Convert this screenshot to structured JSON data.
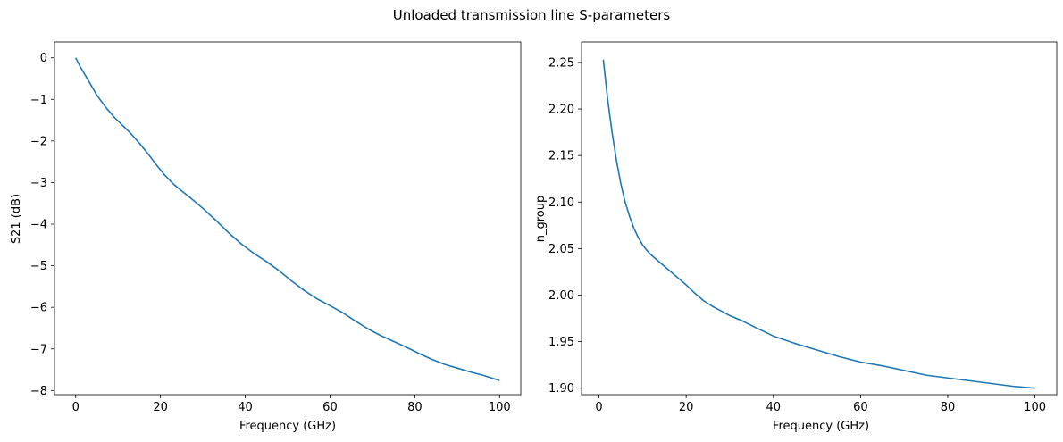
{
  "figure": {
    "title": "Unloaded transmission line S-parameters"
  },
  "chart_data": [
    {
      "type": "line",
      "xlabel": "Frequency (GHz)",
      "ylabel": "S21 (dB)",
      "xlim": [
        -5,
        105
      ],
      "ylim": [
        -8.1,
        0.38
      ],
      "xticks": [
        0,
        20,
        40,
        60,
        80,
        100
      ],
      "xtick_labels": [
        "0",
        "20",
        "40",
        "60",
        "80",
        "100"
      ],
      "yticks": [
        0,
        -1,
        -2,
        -3,
        -4,
        -5,
        -6,
        -7,
        -8
      ],
      "ytick_labels": [
        "0",
        "−1",
        "−2",
        "−3",
        "−4",
        "−5",
        "−6",
        "−7",
        "−8"
      ],
      "grid": false,
      "series": [
        {
          "color": "#1f77b4",
          "x": [
            0,
            1,
            3,
            5,
            7,
            9,
            11,
            13,
            15,
            17,
            19,
            21,
            23,
            25,
            27,
            30,
            33,
            36,
            39,
            42,
            45,
            48,
            51,
            54,
            57,
            60,
            63,
            66,
            69,
            72,
            75,
            78,
            81,
            84,
            87,
            90,
            93,
            96,
            100
          ],
          "y": [
            0,
            -0.2,
            -0.55,
            -0.9,
            -1.18,
            -1.42,
            -1.62,
            -1.82,
            -2.05,
            -2.3,
            -2.57,
            -2.82,
            -3.03,
            -3.2,
            -3.36,
            -3.62,
            -3.9,
            -4.2,
            -4.47,
            -4.7,
            -4.9,
            -5.12,
            -5.37,
            -5.6,
            -5.8,
            -5.96,
            -6.13,
            -6.33,
            -6.52,
            -6.68,
            -6.82,
            -6.96,
            -7.11,
            -7.25,
            -7.37,
            -7.46,
            -7.55,
            -7.63,
            -7.76
          ]
        }
      ]
    },
    {
      "type": "line",
      "xlabel": "Frequency (GHz)",
      "ylabel": "n_group",
      "xlim": [
        -4,
        105
      ],
      "ylim": [
        1.893,
        2.272
      ],
      "xticks": [
        0,
        20,
        40,
        60,
        80,
        100
      ],
      "xtick_labels": [
        "0",
        "20",
        "40",
        "60",
        "80",
        "100"
      ],
      "yticks": [
        1.9,
        1.95,
        2.0,
        2.05,
        2.1,
        2.15,
        2.2,
        2.25
      ],
      "ytick_labels": [
        "1.90",
        "1.95",
        "2.00",
        "2.05",
        "2.10",
        "2.15",
        "2.20",
        "2.25"
      ],
      "grid": false,
      "series": [
        {
          "color": "#1f77b4",
          "x": [
            1,
            2,
            3,
            4,
            5,
            6,
            7,
            8,
            9,
            10,
            11,
            12,
            14,
            16,
            18,
            20,
            22,
            24,
            26,
            28,
            30,
            33,
            36,
            40,
            45,
            50,
            55,
            60,
            65,
            70,
            75,
            80,
            85,
            90,
            95,
            100
          ],
          "y": [
            2.253,
            2.21,
            2.175,
            2.145,
            2.12,
            2.1,
            2.085,
            2.072,
            2.062,
            2.054,
            2.048,
            2.043,
            2.035,
            2.027,
            2.019,
            2.011,
            2.002,
            1.994,
            1.988,
            1.983,
            1.978,
            1.972,
            1.965,
            1.956,
            1.948,
            1.941,
            1.934,
            1.928,
            1.924,
            1.919,
            1.914,
            1.911,
            1.908,
            1.905,
            1.902,
            1.9
          ]
        }
      ]
    }
  ]
}
